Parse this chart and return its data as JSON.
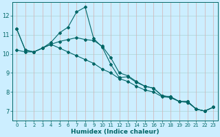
{
  "xlabel": "Humidex (Indice chaleur)",
  "background_color": "#cceeff",
  "grid_color_h": "#aad4d4",
  "grid_color_v": "#d4b0b0",
  "line_color": "#006666",
  "xlim": [
    -0.5,
    23.5
  ],
  "ylim": [
    6.5,
    12.7
  ],
  "xticks": [
    0,
    1,
    2,
    3,
    4,
    5,
    6,
    7,
    8,
    9,
    10,
    11,
    12,
    13,
    14,
    15,
    16,
    17,
    18,
    19,
    20,
    21,
    22,
    23
  ],
  "yticks": [
    7,
    8,
    9,
    10,
    11,
    12
  ],
  "series": [
    [
      11.3,
      10.2,
      10.1,
      10.3,
      10.6,
      11.1,
      11.4,
      12.2,
      12.45,
      10.8,
      10.35,
      9.45,
      8.75,
      8.8,
      8.5,
      8.3,
      8.2,
      7.8,
      7.75,
      7.5,
      7.5,
      7.1,
      7.0,
      7.2
    ],
    [
      10.2,
      10.1,
      10.1,
      10.3,
      10.5,
      10.65,
      10.75,
      10.85,
      10.75,
      10.7,
      10.4,
      9.8,
      9.0,
      8.85,
      8.55,
      8.3,
      8.2,
      7.8,
      7.75,
      7.5,
      7.5,
      7.1,
      7.0,
      7.2
    ],
    [
      11.3,
      10.2,
      10.1,
      10.3,
      10.5,
      10.3,
      10.1,
      9.9,
      9.7,
      9.5,
      9.2,
      9.0,
      8.7,
      8.55,
      8.3,
      8.1,
      8.0,
      7.75,
      7.7,
      7.5,
      7.45,
      7.1,
      7.0,
      7.2
    ]
  ]
}
